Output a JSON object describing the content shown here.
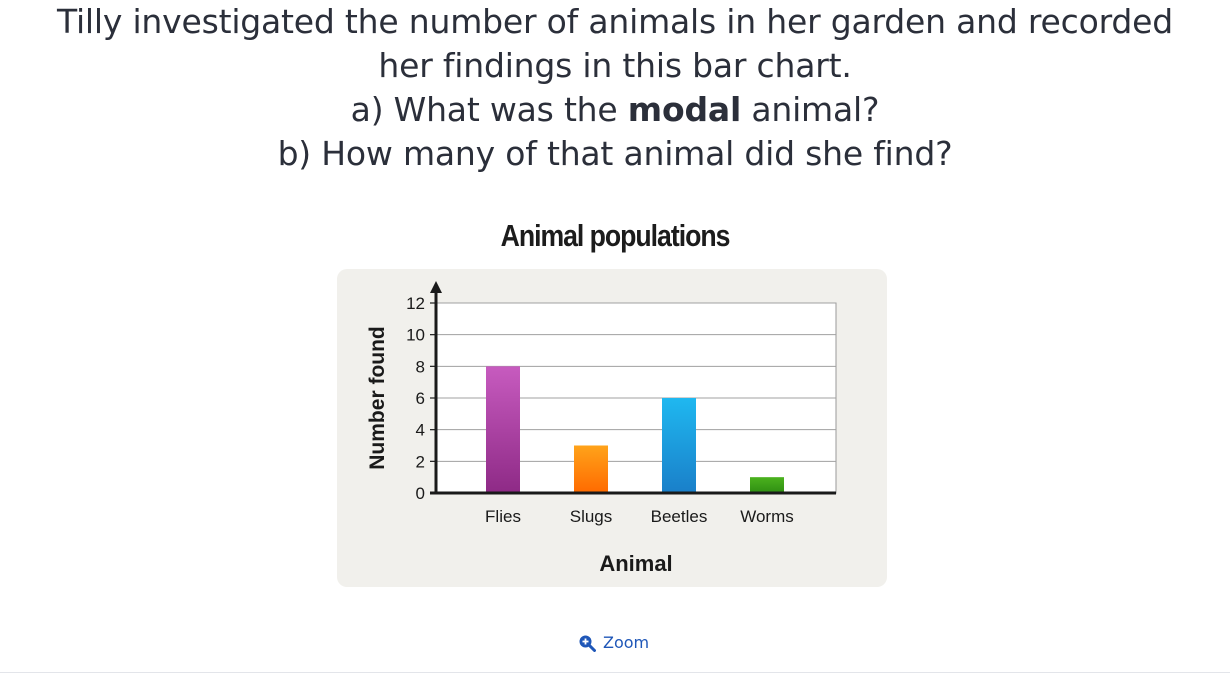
{
  "question": {
    "line1": "Tilly investigated the number of animals in her garden and recorded",
    "line2": "her findings in this bar chart.",
    "line3_prefix": "a) What was the ",
    "line3_bold": "modal",
    "line3_suffix": " animal?",
    "line4": "b) How many of that animal did she find?"
  },
  "chart_data": {
    "type": "bar",
    "title": "Animal populations",
    "xlabel": "Animal",
    "ylabel": "Number found",
    "categories": [
      "Flies",
      "Slugs",
      "Beetles",
      "Worms"
    ],
    "values": [
      8,
      3,
      6,
      1
    ],
    "ylim": [
      0,
      12
    ],
    "yticks": [
      0,
      2,
      4,
      6,
      8,
      10,
      12
    ],
    "grid": true,
    "legend": "none",
    "colors": [
      [
        "#c75bbf",
        "#8e2a86"
      ],
      [
        "#ffa31a",
        "#ff6a00"
      ],
      [
        "#1fb8f0",
        "#1a7fc9"
      ],
      [
        "#4bb21e",
        "#2f8e12"
      ]
    ]
  },
  "zoom": {
    "label": "Zoom",
    "icon": "zoom-in-icon",
    "color": "#1f57b8"
  }
}
